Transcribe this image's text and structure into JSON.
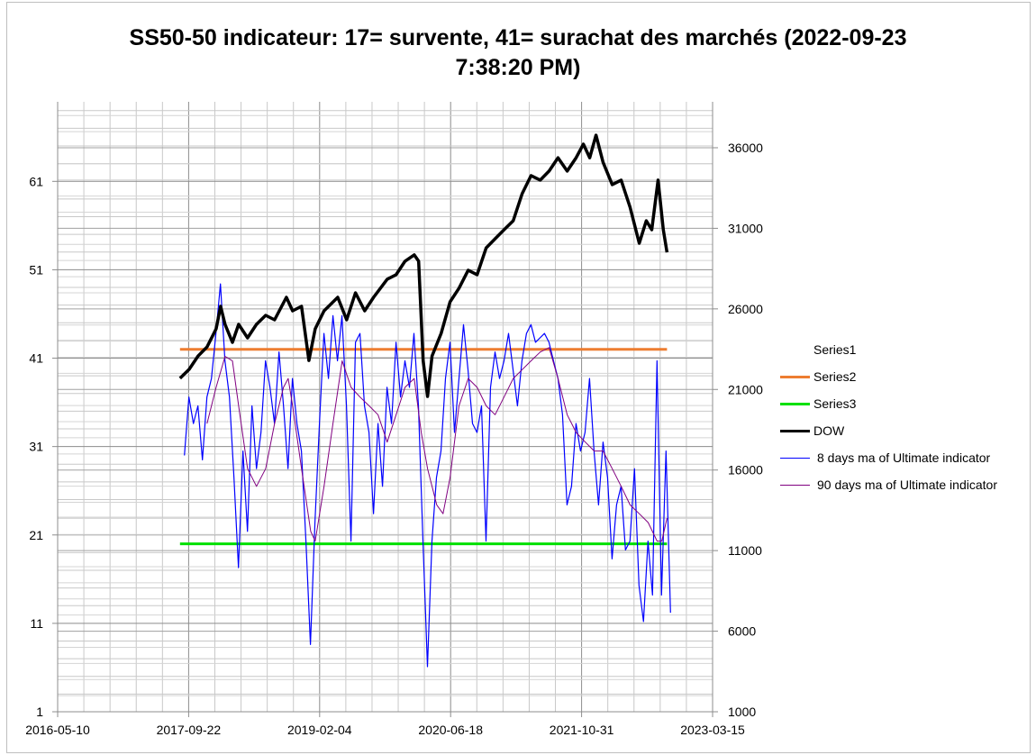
{
  "chart_data": {
    "type": "line",
    "title": "SS50-50 indicateur: 17= survente, 41= surachat des marchés (2022-09-23 7:38:20 PM)",
    "title_lines": [
      "SS50-50 indicateur: 17= survente, 41= surachat des marchés (2022-09-23",
      "7:38:20 PM)"
    ],
    "x_unit": "days since 2016-05-10",
    "x_range": [
      0,
      2500
    ],
    "x_ticks": [
      {
        "v": 0,
        "label": "2016-05-10"
      },
      {
        "v": 500,
        "label": "2017-09-22"
      },
      {
        "v": 1000,
        "label": "2019-02-04"
      },
      {
        "v": 1500,
        "label": "2020-06-18"
      },
      {
        "v": 2000,
        "label": "2021-10-31"
      },
      {
        "v": 2500,
        "label": "2023-03-15"
      }
    ],
    "y_left": {
      "range": [
        1,
        70
      ],
      "ticks": [
        "1",
        "11",
        "21",
        "31",
        "41",
        "51",
        "61"
      ]
    },
    "y_right": {
      "range": [
        1000,
        38850
      ],
      "ticks": [
        "1000",
        "6000",
        "11000",
        "16000",
        "21000",
        "26000",
        "31000",
        "36000"
      ]
    },
    "grid": true,
    "legend_position": "right",
    "legend": [
      "Series1",
      "Series2",
      "Series3",
      "DOW",
      "8 days ma of Ultimate indicator",
      "90 days ma of Ultimate indicator"
    ],
    "series": [
      {
        "name": "Series1",
        "axis": "left",
        "color": "none",
        "x": [],
        "y": []
      },
      {
        "name": "Series2",
        "axis": "left",
        "color": "#ed7d31",
        "width": 3,
        "x": [
          467,
          2326
        ],
        "y": [
          42,
          42
        ]
      },
      {
        "name": "Series3",
        "axis": "left",
        "color": "#00e000",
        "width": 3,
        "x": [
          467,
          2326
        ],
        "y": [
          20,
          20
        ]
      },
      {
        "name": "DOW",
        "axis": "right",
        "color": "#000000",
        "width": 3.5,
        "x": [
          467,
          502,
          536,
          570,
          605,
          622,
          639,
          667,
          691,
          725,
          759,
          794,
          828,
          873,
          897,
          931,
          959,
          983,
          1017,
          1069,
          1103,
          1137,
          1172,
          1206,
          1258,
          1292,
          1326,
          1361,
          1378,
          1395,
          1412,
          1429,
          1464,
          1498,
          1532,
          1567,
          1601,
          1636,
          1670,
          1704,
          1739,
          1773,
          1807,
          1842,
          1876,
          1910,
          1945,
          1979,
          2007,
          2031,
          2055,
          2082,
          2117,
          2151,
          2185,
          2220,
          2247,
          2268,
          2292,
          2312,
          2326
        ],
        "y": [
          21690,
          22250,
          23080,
          23640,
          24760,
          26160,
          25040,
          23920,
          25040,
          24200,
          25040,
          25600,
          25320,
          26720,
          25880,
          26160,
          22800,
          24760,
          25880,
          26720,
          25320,
          27000,
          25880,
          26720,
          27840,
          28120,
          28960,
          29350,
          28960,
          22800,
          20570,
          23080,
          24480,
          26440,
          27280,
          28400,
          28120,
          29790,
          30350,
          30910,
          31470,
          33150,
          34270,
          33990,
          34550,
          35380,
          34550,
          35380,
          36220,
          35380,
          36780,
          35100,
          33710,
          33990,
          32310,
          30070,
          31470,
          30910,
          33990,
          30910,
          29510
        ]
      },
      {
        "name": "8 days ma of Ultimate indicator",
        "axis": "left",
        "color": "#0000ff",
        "width": 1.2,
        "x_start": 484,
        "x_step": 17.18,
        "y": [
          30.0,
          36.6,
          33.6,
          35.6,
          29.5,
          36.6,
          38.7,
          43.8,
          49.4,
          40.7,
          36.6,
          27.5,
          17.3,
          30.5,
          21.4,
          35.6,
          28.5,
          32.6,
          40.7,
          37.7,
          33.6,
          41.7,
          35.6,
          28.5,
          38.7,
          33.6,
          30.5,
          20.3,
          8.6,
          22.4,
          33.6,
          43.8,
          38.7,
          45.8,
          40.7,
          45.8,
          35.6,
          20.3,
          42.8,
          43.8,
          35.6,
          32.6,
          23.4,
          33.6,
          26.5,
          37.7,
          33.6,
          42.8,
          36.6,
          40.7,
          37.7,
          43.8,
          35.6,
          20.3,
          6.1,
          20.3,
          27.5,
          30.5,
          38.7,
          42.8,
          32.6,
          38.7,
          44.8,
          39.7,
          33.6,
          32.6,
          35.6,
          20.3,
          37.7,
          41.7,
          38.7,
          40.7,
          43.8,
          39.7,
          35.6,
          40.7,
          43.8,
          44.8,
          42.8,
          43.3,
          43.8,
          42.8,
          40.7,
          38.7,
          34.6,
          24.4,
          26.5,
          33.6,
          30.5,
          32.6,
          38.7,
          30.5,
          24.4,
          31.5,
          27.5,
          18.3,
          24.4,
          26.5,
          19.3,
          20.3,
          28.5,
          15.3,
          11.2,
          20.3,
          14.2,
          40.7,
          14.2,
          30.5,
          12.2
        ]
      },
      {
        "name": "90 days ma of Ultimate indicator",
        "axis": "left",
        "color": "#800080",
        "width": 1,
        "x": [
          570,
          605,
          639,
          667,
          691,
          725,
          759,
          794,
          828,
          862,
          880,
          897,
          931,
          966,
          983,
          1017,
          1051,
          1086,
          1120,
          1154,
          1189,
          1223,
          1258,
          1292,
          1326,
          1361,
          1388,
          1412,
          1447,
          1471,
          1498,
          1532,
          1567,
          1601,
          1636,
          1670,
          1704,
          1739,
          1773,
          1807,
          1842,
          1876,
          1910,
          1945,
          1979,
          2014,
          2048,
          2082,
          2117,
          2151,
          2185,
          2220,
          2254,
          2288,
          2306,
          2326
        ],
        "y": [
          33.6,
          37.7,
          41.2,
          40.7,
          35.6,
          28.5,
          26.5,
          28.5,
          33.6,
          37.7,
          38.7,
          35.6,
          28.5,
          21.4,
          20.3,
          26.5,
          33.6,
          40.7,
          37.7,
          36.6,
          35.6,
          34.6,
          31.5,
          34.6,
          37.7,
          38.7,
          32.6,
          28.5,
          24.4,
          23.4,
          27.5,
          35.6,
          38.7,
          37.7,
          35.6,
          34.6,
          36.6,
          38.7,
          39.7,
          40.7,
          41.7,
          42.2,
          38.7,
          34.6,
          32.6,
          31.5,
          30.5,
          30.5,
          28.5,
          26.5,
          24.4,
          23.4,
          22.4,
          20.3,
          20.3,
          22.9
        ]
      }
    ]
  }
}
